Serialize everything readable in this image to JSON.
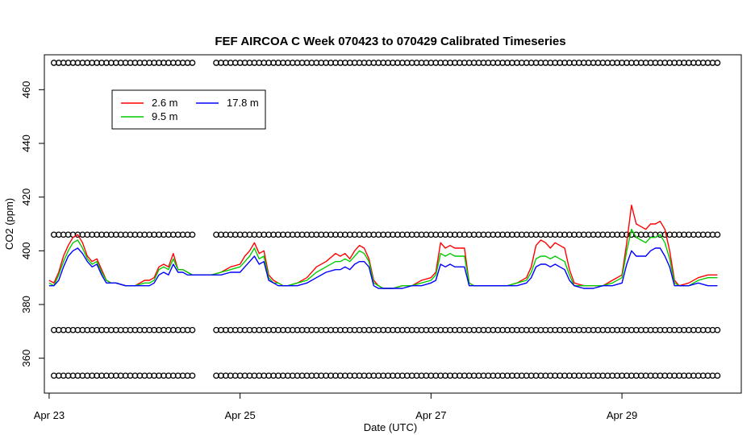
{
  "chart_data": {
    "type": "line",
    "title": "FEF AIRCOA C  Week 070423 to 070429  Calibrated Timeseries",
    "xlabel": "Date (UTC)",
    "ylabel": "CO2 (ppm)",
    "xlim": [
      -0.05,
      7.25
    ],
    "ylim": [
      347,
      473
    ],
    "x_ticks": [
      {
        "value": 0,
        "label": "Apr 23"
      },
      {
        "value": 2,
        "label": "Apr 25"
      },
      {
        "value": 4,
        "label": "Apr 27"
      },
      {
        "value": 6,
        "label": "Apr 29"
      }
    ],
    "y_ticks": [
      360,
      380,
      400,
      420,
      440,
      460
    ],
    "grid": false,
    "legend_position": "top-left",
    "series": [
      {
        "name": "2.6 m",
        "color": "#ff0000",
        "x": [
          0,
          0.05,
          0.1,
          0.15,
          0.2,
          0.25,
          0.3,
          0.35,
          0.4,
          0.45,
          0.5,
          0.55,
          0.6,
          0.65,
          0.7,
          0.8,
          0.9,
          1.0,
          1.05,
          1.1,
          1.15,
          1.2,
          1.25,
          1.3,
          1.35,
          1.4,
          1.45,
          1.5,
          1.6,
          1.7,
          1.8,
          1.9,
          2.0,
          2.05,
          2.1,
          2.15,
          2.2,
          2.25,
          2.3,
          2.35,
          2.4,
          2.45,
          2.5,
          2.6,
          2.7,
          2.8,
          2.9,
          3.0,
          3.05,
          3.1,
          3.15,
          3.2,
          3.25,
          3.3,
          3.35,
          3.4,
          3.45,
          3.5,
          3.6,
          3.7,
          3.8,
          3.9,
          4.0,
          4.05,
          4.1,
          4.15,
          4.2,
          4.25,
          4.3,
          4.35,
          4.4,
          4.45,
          4.5,
          4.6,
          4.7,
          4.8,
          4.9,
          5.0,
          5.05,
          5.1,
          5.15,
          5.2,
          5.25,
          5.3,
          5.35,
          5.4,
          5.45,
          5.5,
          5.6,
          5.7,
          5.8,
          5.9,
          6.0,
          6.05,
          6.1,
          6.15,
          6.2,
          6.25,
          6.3,
          6.35,
          6.4,
          6.45,
          6.5,
          6.55,
          6.6,
          6.7,
          6.8,
          6.9,
          7.0
        ],
        "values": [
          389,
          388,
          392,
          398,
          402,
          405,
          406,
          403,
          398,
          396,
          397,
          393,
          389,
          388,
          388,
          387,
          387,
          389,
          389,
          390,
          394,
          395,
          394,
          399,
          393,
          393,
          392,
          391,
          391,
          391,
          392,
          394,
          395,
          398,
          400,
          403,
          399,
          400,
          391,
          389,
          388,
          387,
          387,
          388,
          390,
          394,
          396,
          399,
          398,
          399,
          397,
          400,
          402,
          401,
          397,
          389,
          387,
          386,
          386,
          387,
          387,
          389,
          390,
          392,
          403,
          401,
          402,
          401,
          401,
          401,
          388,
          387,
          387,
          387,
          387,
          387,
          388,
          390,
          394,
          402,
          404,
          403,
          401,
          403,
          402,
          401,
          393,
          388,
          387,
          387,
          387,
          389,
          391,
          403,
          417,
          410,
          409,
          408,
          410,
          410,
          411,
          408,
          400,
          389,
          387,
          388,
          390,
          391,
          391
        ]
      },
      {
        "name": "9.5 m",
        "color": "#00cc00",
        "x": [
          0,
          0.05,
          0.1,
          0.15,
          0.2,
          0.25,
          0.3,
          0.35,
          0.4,
          0.45,
          0.5,
          0.55,
          0.6,
          0.65,
          0.7,
          0.8,
          0.9,
          1.0,
          1.05,
          1.1,
          1.15,
          1.2,
          1.25,
          1.3,
          1.35,
          1.4,
          1.45,
          1.5,
          1.6,
          1.7,
          1.8,
          1.9,
          2.0,
          2.05,
          2.1,
          2.15,
          2.2,
          2.25,
          2.3,
          2.35,
          2.4,
          2.45,
          2.5,
          2.6,
          2.7,
          2.8,
          2.9,
          3.0,
          3.05,
          3.1,
          3.15,
          3.2,
          3.25,
          3.3,
          3.35,
          3.4,
          3.45,
          3.5,
          3.6,
          3.7,
          3.8,
          3.9,
          4.0,
          4.05,
          4.1,
          4.15,
          4.2,
          4.25,
          4.3,
          4.35,
          4.4,
          4.45,
          4.5,
          4.6,
          4.7,
          4.8,
          4.9,
          5.0,
          5.05,
          5.1,
          5.15,
          5.2,
          5.25,
          5.3,
          5.35,
          5.4,
          5.45,
          5.5,
          5.6,
          5.7,
          5.8,
          5.9,
          6.0,
          6.05,
          6.1,
          6.15,
          6.2,
          6.25,
          6.3,
          6.35,
          6.4,
          6.45,
          6.5,
          6.55,
          6.6,
          6.7,
          6.8,
          6.9,
          7.0
        ],
        "values": [
          388,
          387,
          391,
          396,
          400,
          403,
          404,
          401,
          397,
          395,
          396,
          392,
          389,
          388,
          388,
          387,
          387,
          388,
          388,
          389,
          393,
          394,
          393,
          397,
          393,
          393,
          392,
          391,
          391,
          391,
          392,
          393,
          394,
          396,
          398,
          401,
          397,
          398,
          390,
          388,
          388,
          387,
          387,
          388,
          389,
          392,
          394,
          396,
          396,
          397,
          396,
          398,
          400,
          399,
          396,
          388,
          387,
          386,
          386,
          387,
          387,
          388,
          389,
          391,
          399,
          398,
          399,
          398,
          398,
          398,
          388,
          387,
          387,
          387,
          387,
          387,
          388,
          389,
          392,
          397,
          398,
          398,
          397,
          398,
          397,
          396,
          391,
          387,
          387,
          387,
          387,
          388,
          390,
          400,
          408,
          405,
          404,
          403,
          405,
          405,
          406,
          403,
          397,
          388,
          387,
          387,
          389,
          390,
          390
        ]
      },
      {
        "name": "17.8 m",
        "color": "#0000ff",
        "x": [
          0,
          0.05,
          0.1,
          0.15,
          0.2,
          0.25,
          0.3,
          0.35,
          0.4,
          0.45,
          0.5,
          0.55,
          0.6,
          0.65,
          0.7,
          0.8,
          0.9,
          1.0,
          1.05,
          1.1,
          1.15,
          1.2,
          1.25,
          1.3,
          1.35,
          1.4,
          1.45,
          1.5,
          1.6,
          1.7,
          1.8,
          1.9,
          2.0,
          2.05,
          2.1,
          2.15,
          2.2,
          2.25,
          2.3,
          2.35,
          2.4,
          2.45,
          2.5,
          2.6,
          2.7,
          2.8,
          2.9,
          3.0,
          3.05,
          3.1,
          3.15,
          3.2,
          3.25,
          3.3,
          3.35,
          3.4,
          3.45,
          3.5,
          3.6,
          3.7,
          3.8,
          3.9,
          4.0,
          4.05,
          4.1,
          4.15,
          4.2,
          4.25,
          4.3,
          4.35,
          4.4,
          4.45,
          4.5,
          4.6,
          4.7,
          4.8,
          4.9,
          5.0,
          5.05,
          5.1,
          5.15,
          5.2,
          5.25,
          5.3,
          5.35,
          5.4,
          5.45,
          5.5,
          5.6,
          5.7,
          5.8,
          5.9,
          6.0,
          6.05,
          6.1,
          6.15,
          6.2,
          6.25,
          6.3,
          6.35,
          6.4,
          6.45,
          6.5,
          6.55,
          6.6,
          6.7,
          6.8,
          6.9,
          7.0
        ],
        "values": [
          387,
          387,
          389,
          394,
          398,
          400,
          401,
          399,
          396,
          394,
          395,
          391,
          388,
          388,
          388,
          387,
          387,
          387,
          387,
          388,
          391,
          392,
          391,
          395,
          392,
          392,
          391,
          391,
          391,
          391,
          391,
          392,
          392,
          394,
          396,
          398,
          395,
          396,
          389,
          388,
          387,
          387,
          387,
          387,
          388,
          390,
          392,
          393,
          393,
          394,
          393,
          395,
          396,
          396,
          394,
          387,
          386,
          386,
          386,
          386,
          387,
          387,
          388,
          389,
          395,
          394,
          395,
          394,
          394,
          394,
          387,
          387,
          387,
          387,
          387,
          387,
          387,
          388,
          390,
          394,
          395,
          395,
          394,
          395,
          394,
          393,
          389,
          387,
          386,
          386,
          387,
          387,
          388,
          395,
          400,
          398,
          398,
          398,
          400,
          401,
          401,
          398,
          394,
          387,
          387,
          387,
          388,
          387,
          387
        ]
      }
    ],
    "flag_markers": [
      {
        "y": 470,
        "x": [
          0.05,
          0.1,
          0.15,
          0.2,
          0.25,
          0.3,
          0.35,
          0.4,
          0.45,
          0.5,
          0.55,
          0.6,
          0.65,
          0.7,
          0.75,
          0.8,
          0.85,
          0.9,
          0.95,
          1.0,
          1.05,
          1.1,
          1.15,
          1.2,
          1.25,
          1.3,
          1.35,
          1.4,
          1.45,
          1.5,
          1.75,
          1.8,
          1.85,
          1.9,
          1.95,
          2.0,
          2.05,
          2.1,
          2.15,
          2.2,
          2.25,
          2.3,
          2.35,
          2.4,
          2.45,
          2.5,
          2.55,
          2.6,
          2.65,
          2.7,
          2.75,
          2.8,
          2.85,
          2.9,
          2.95,
          3.0,
          3.05,
          3.1,
          3.15,
          3.2,
          3.25,
          3.3,
          3.35,
          3.4,
          3.45,
          3.5,
          3.55,
          3.6,
          3.65,
          3.7,
          3.75,
          3.8,
          3.85,
          3.9,
          3.95,
          4.0,
          4.05,
          4.1,
          4.15,
          4.2,
          4.25,
          4.3,
          4.35,
          4.4,
          4.45,
          4.5,
          4.55,
          4.6,
          4.65,
          4.7,
          4.75,
          4.8,
          4.85,
          4.9,
          4.95,
          5.0,
          5.05,
          5.1,
          5.15,
          5.2,
          5.25,
          5.3,
          5.35,
          5.4,
          5.45,
          5.5,
          5.55,
          5.6,
          5.65,
          5.7,
          5.75,
          5.8,
          5.85,
          5.9,
          5.95,
          6.0,
          6.05,
          6.1,
          6.15,
          6.2,
          6.25,
          6.3,
          6.35,
          6.4,
          6.45,
          6.5,
          6.55,
          6.6,
          6.65,
          6.7,
          6.75,
          6.8,
          6.85,
          6.9,
          6.95,
          7.0
        ]
      },
      {
        "y": 406,
        "x": [
          0.05,
          0.1,
          0.15,
          0.2,
          0.25,
          0.3,
          0.35,
          0.4,
          0.45,
          0.5,
          0.55,
          0.6,
          0.65,
          0.7,
          0.75,
          0.8,
          0.85,
          0.9,
          0.95,
          1.0,
          1.05,
          1.1,
          1.15,
          1.2,
          1.25,
          1.3,
          1.35,
          1.4,
          1.45,
          1.5,
          1.75,
          1.8,
          1.85,
          1.9,
          1.95,
          2.0,
          2.05,
          2.1,
          2.15,
          2.2,
          2.25,
          2.3,
          2.35,
          2.4,
          2.45,
          2.5,
          2.55,
          2.6,
          2.65,
          2.7,
          2.75,
          2.8,
          2.85,
          2.9,
          2.95,
          3.0,
          3.05,
          3.1,
          3.15,
          3.2,
          3.25,
          3.3,
          3.35,
          3.4,
          3.45,
          3.5,
          3.55,
          3.6,
          3.65,
          3.7,
          3.75,
          3.8,
          3.85,
          3.9,
          3.95,
          4.0,
          4.05,
          4.1,
          4.15,
          4.2,
          4.25,
          4.3,
          4.35,
          4.4,
          4.45,
          4.5,
          4.55,
          4.6,
          4.65,
          4.7,
          4.75,
          4.8,
          4.85,
          4.9,
          4.95,
          5.0,
          5.05,
          5.1,
          5.15,
          5.2,
          5.25,
          5.3,
          5.35,
          5.4,
          5.45,
          5.5,
          5.55,
          5.6,
          5.65,
          5.7,
          5.75,
          5.8,
          5.85,
          5.9,
          5.95,
          6.0,
          6.05,
          6.1,
          6.15,
          6.2,
          6.25,
          6.3,
          6.35,
          6.4,
          6.45,
          6.5,
          6.55,
          6.6,
          6.65,
          6.7,
          6.75,
          6.8,
          6.85,
          6.9,
          6.95,
          7.0
        ]
      },
      {
        "y": 370.5,
        "x": [
          0.05,
          0.1,
          0.15,
          0.2,
          0.25,
          0.3,
          0.35,
          0.4,
          0.45,
          0.5,
          0.55,
          0.6,
          0.65,
          0.7,
          0.75,
          0.8,
          0.85,
          0.9,
          0.95,
          1.0,
          1.05,
          1.1,
          1.15,
          1.2,
          1.25,
          1.3,
          1.35,
          1.4,
          1.45,
          1.5,
          1.75,
          1.8,
          1.85,
          1.9,
          1.95,
          2.0,
          2.05,
          2.1,
          2.15,
          2.2,
          2.25,
          2.3,
          2.35,
          2.4,
          2.45,
          2.5,
          2.55,
          2.6,
          2.65,
          2.7,
          2.75,
          2.8,
          2.85,
          2.9,
          2.95,
          3.0,
          3.05,
          3.1,
          3.15,
          3.2,
          3.25,
          3.3,
          3.35,
          3.4,
          3.45,
          3.5,
          3.55,
          3.6,
          3.65,
          3.7,
          3.75,
          3.8,
          3.85,
          3.9,
          3.95,
          4.0,
          4.05,
          4.1,
          4.15,
          4.2,
          4.25,
          4.3,
          4.35,
          4.4,
          4.45,
          4.5,
          4.55,
          4.6,
          4.65,
          4.7,
          4.75,
          4.8,
          4.85,
          4.9,
          4.95,
          5.0,
          5.05,
          5.1,
          5.15,
          5.2,
          5.25,
          5.3,
          5.35,
          5.4,
          5.45,
          5.5,
          5.55,
          5.6,
          5.65,
          5.7,
          5.75,
          5.8,
          5.85,
          5.9,
          5.95,
          6.0,
          6.05,
          6.1,
          6.15,
          6.2,
          6.25,
          6.3,
          6.35,
          6.4,
          6.45,
          6.5,
          6.55,
          6.6,
          6.65,
          6.7,
          6.75,
          6.8,
          6.85,
          6.9,
          6.95,
          7.0
        ]
      },
      {
        "y": 353.5,
        "x": [
          0.05,
          0.1,
          0.15,
          0.2,
          0.25,
          0.3,
          0.35,
          0.4,
          0.45,
          0.5,
          0.55,
          0.6,
          0.65,
          0.7,
          0.75,
          0.8,
          0.85,
          0.9,
          0.95,
          1.0,
          1.05,
          1.1,
          1.15,
          1.2,
          1.25,
          1.3,
          1.35,
          1.4,
          1.45,
          1.5,
          1.75,
          1.8,
          1.85,
          1.9,
          1.95,
          2.0,
          2.05,
          2.1,
          2.15,
          2.2,
          2.25,
          2.3,
          2.35,
          2.4,
          2.45,
          2.5,
          2.55,
          2.6,
          2.65,
          2.7,
          2.75,
          2.8,
          2.85,
          2.9,
          2.95,
          3.0,
          3.05,
          3.1,
          3.15,
          3.2,
          3.25,
          3.3,
          3.35,
          3.4,
          3.45,
          3.5,
          3.55,
          3.6,
          3.65,
          3.7,
          3.75,
          3.8,
          3.85,
          3.9,
          3.95,
          4.0,
          4.05,
          4.1,
          4.15,
          4.2,
          4.25,
          4.3,
          4.35,
          4.4,
          4.45,
          4.5,
          4.55,
          4.6,
          4.65,
          4.7,
          4.75,
          4.8,
          4.85,
          4.9,
          4.95,
          5.0,
          5.05,
          5.1,
          5.15,
          5.2,
          5.25,
          5.3,
          5.35,
          5.4,
          5.45,
          5.5,
          5.55,
          5.6,
          5.65,
          5.7,
          5.75,
          5.8,
          5.85,
          5.9,
          5.95,
          6.0,
          6.05,
          6.1,
          6.15,
          6.2,
          6.25,
          6.3,
          6.35,
          6.4,
          6.45,
          6.5,
          6.55,
          6.6,
          6.65,
          6.7,
          6.75,
          6.8,
          6.85,
          6.9,
          6.95,
          7.0
        ]
      }
    ]
  }
}
